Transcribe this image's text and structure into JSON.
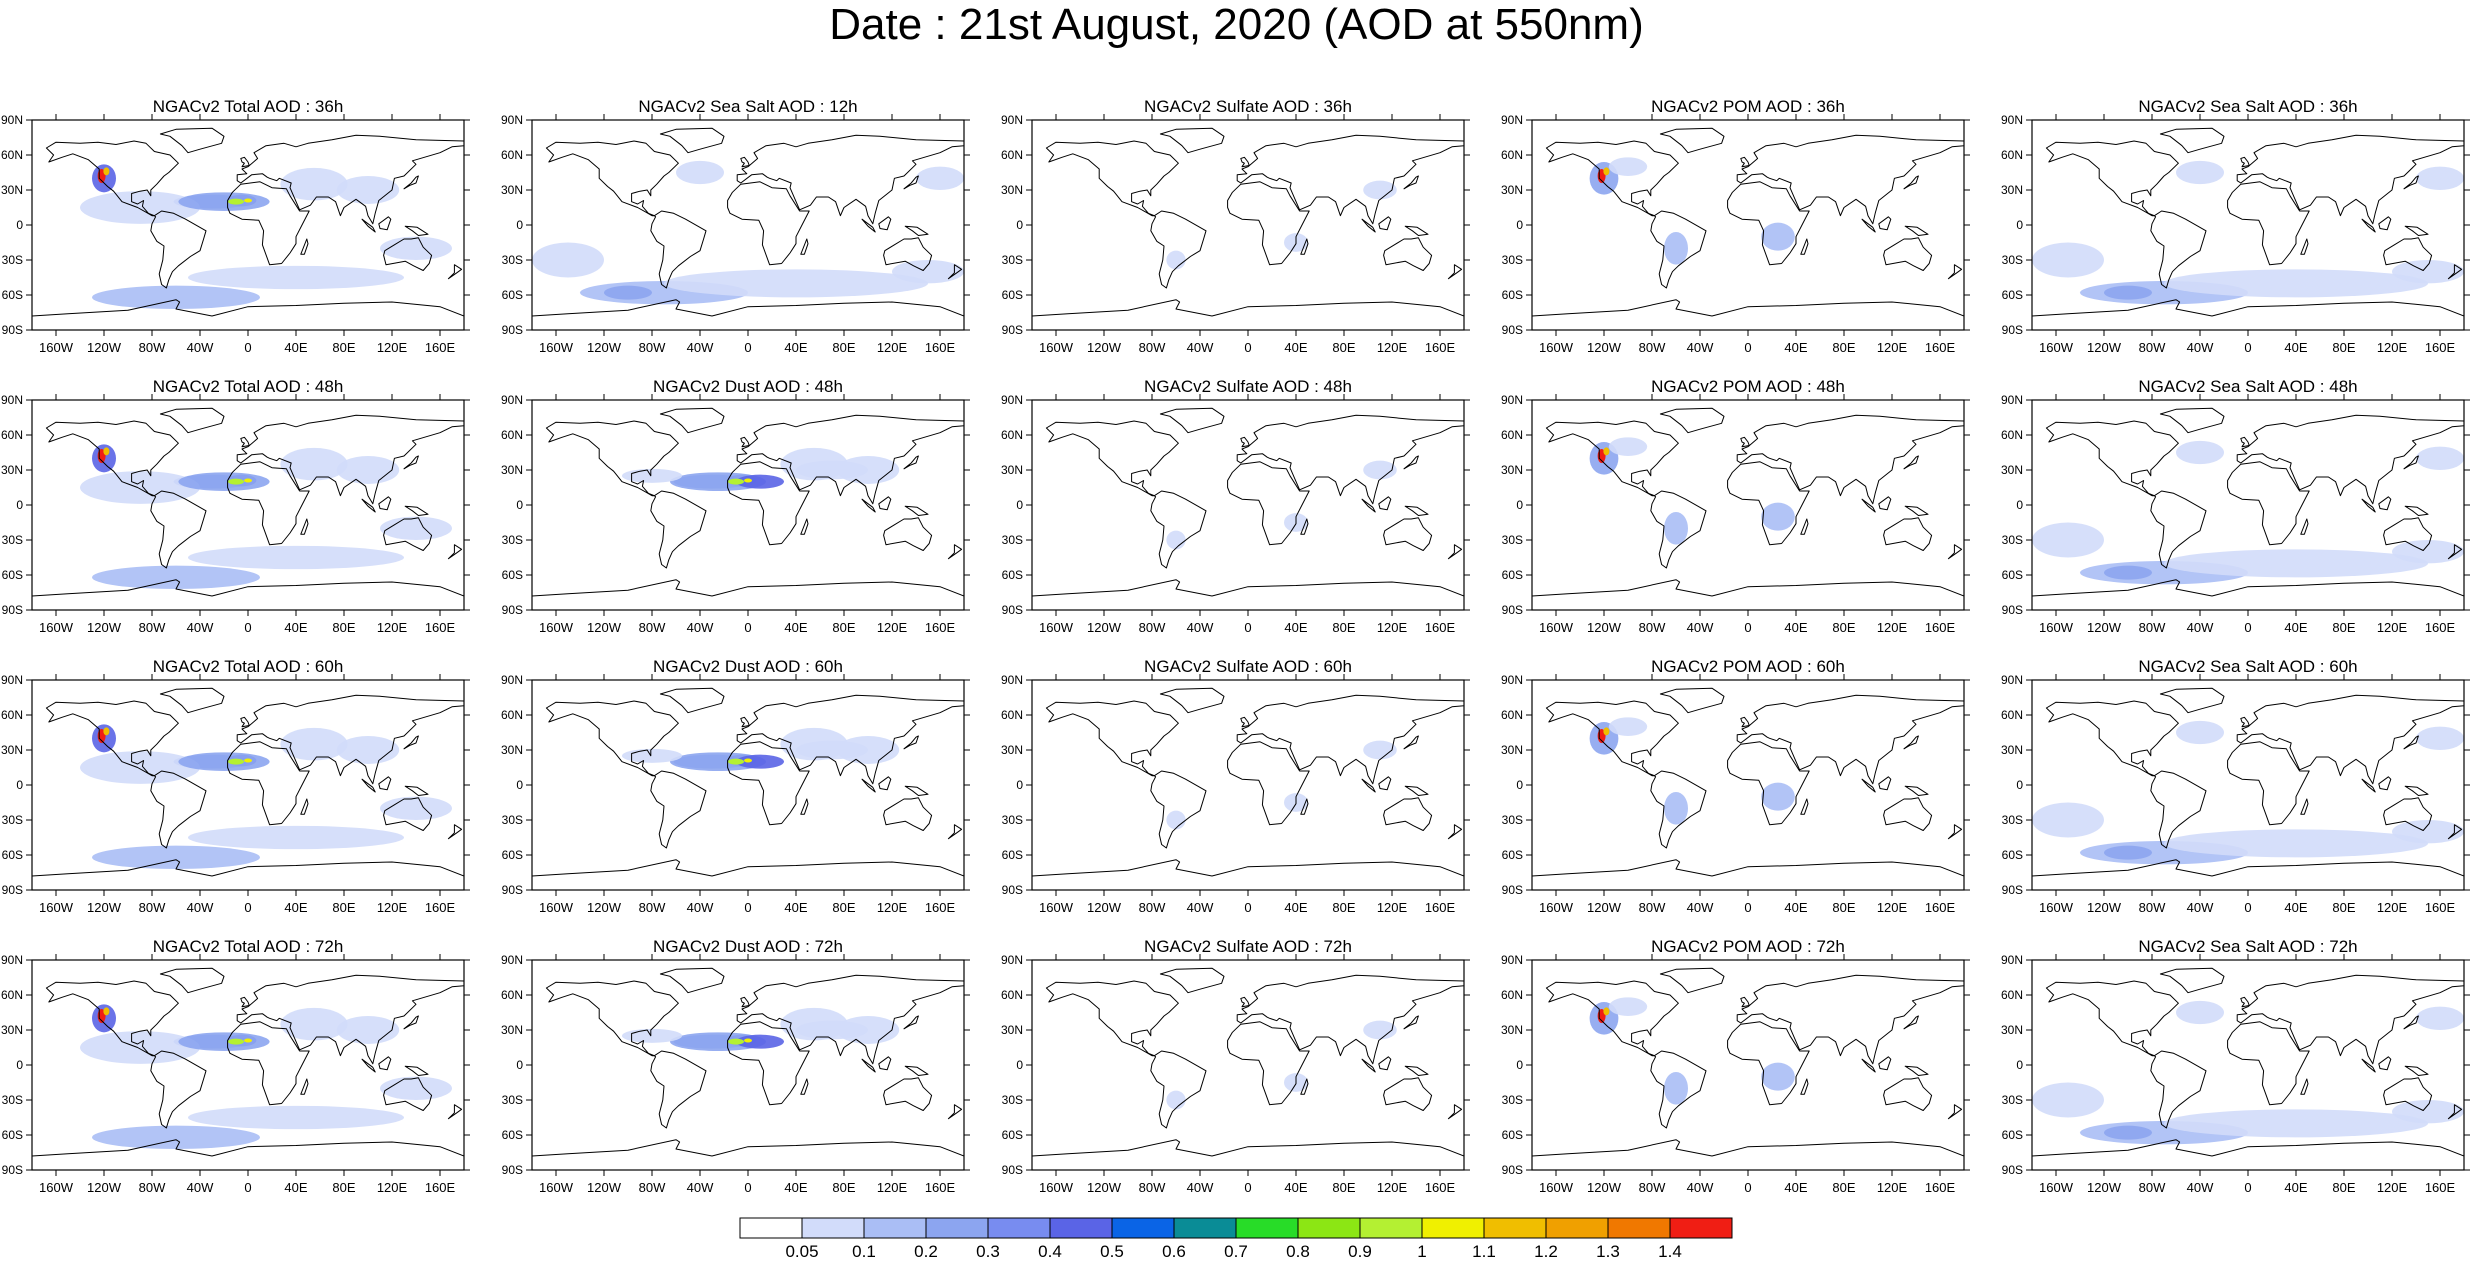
{
  "title": "Date : 21st August, 2020 (AOD at 550nm)",
  "lat_ticks": [
    "90N",
    "60N",
    "30N",
    "0",
    "30S",
    "60S",
    "90S"
  ],
  "lon_ticks": [
    "160W",
    "120W",
    "80W",
    "40W",
    "0",
    "40E",
    "80E",
    "120E",
    "160E"
  ],
  "panels": [
    [
      "NGACv2 Total AOD : 36h",
      "NGACv2 Sea Salt  AOD : 12h",
      "NGACv2 Sulfate AOD : 36h",
      "NGACv2 POM AOD : 36h",
      "NGACv2 Sea Salt  AOD : 36h"
    ],
    [
      "NGACv2 Total AOD : 48h",
      "NGACv2 Dust AOD : 48h",
      "NGACv2 Sulfate AOD : 48h",
      "NGACv2 POM AOD : 48h",
      "NGACv2 Sea Salt  AOD : 48h"
    ],
    [
      "NGACv2 Total AOD : 60h",
      "NGACv2 Dust AOD : 60h",
      "NGACv2 Sulfate AOD : 60h",
      "NGACv2 POM AOD : 60h",
      "NGACv2 Sea Salt  AOD : 60h"
    ],
    [
      "NGACv2 Total AOD : 72h",
      "NGACv2 Dust AOD : 72h",
      "NGACv2 Sulfate AOD : 72h",
      "NGACv2 POM AOD : 72h",
      "NGACv2 Sea Salt  AOD : 72h"
    ]
  ],
  "colorbar": {
    "labels": [
      "0.05",
      "0.1",
      "0.2",
      "0.3",
      "0.4",
      "0.5",
      "0.6",
      "0.7",
      "0.8",
      "0.9",
      "1",
      "1.1",
      "1.2",
      "1.3",
      "1.4"
    ],
    "colors": [
      "#ffffff",
      "#d2dcfa",
      "#aabef5",
      "#8ca5f0",
      "#788cf0",
      "#5a64e6",
      "#0a64e6",
      "#0a8c96",
      "#28dc28",
      "#8ce614",
      "#b4f032",
      "#f0f000",
      "#f0be00",
      "#f0a000",
      "#f07800",
      "#f01e14"
    ]
  },
  "colors": {
    "land_outline": "#000000",
    "light_blue": "#d2dcfa",
    "mid_blue": "#aabef5",
    "blue": "#8ca5f0",
    "deep_blue": "#5a64e6"
  }
}
